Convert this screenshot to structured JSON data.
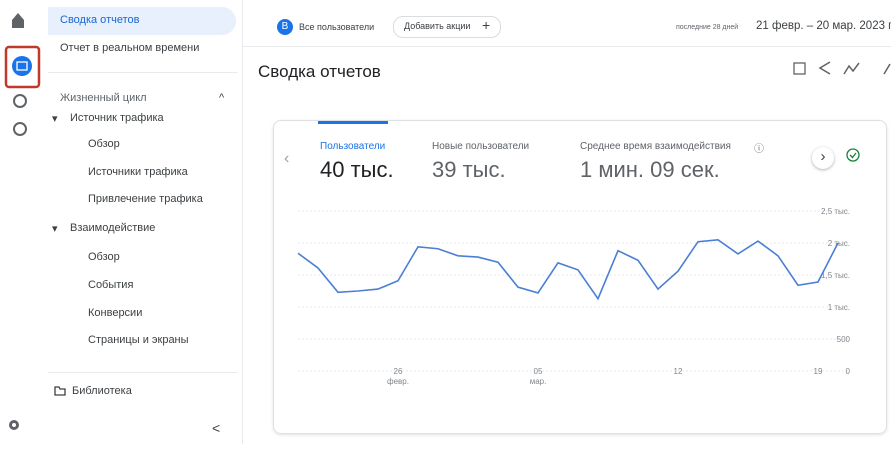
{
  "sidebar": {
    "items": [
      "Сводка отчетов",
      "Отчет в реальном времени"
    ],
    "section": "Жизненный цикл",
    "groups": [
      {
        "title": "Источник трафика",
        "items": [
          "Обзор",
          "Источники трафика",
          "Привлечение трафика"
        ]
      },
      {
        "title": "Взаимодействие",
        "items": [
          "Обзор",
          "События",
          "Конверсии",
          "Страницы и экраны"
        ]
      }
    ],
    "library": "Библиотека"
  },
  "topbar": {
    "segment_badge": "B",
    "segment": "Все пользователи",
    "add_button": "Добавить акции",
    "date_prefix": "последние 28 дней",
    "date_range": "21 февр. – 20 мар. 2023 г."
  },
  "page_title": "Сводка отчетов",
  "metrics": [
    {
      "name": "Пользователи",
      "value": "40 тыс."
    },
    {
      "name": "Новые пользователи",
      "value": "39 тыс."
    },
    {
      "name": "Среднее время взаимодействия",
      "value": "1 мин. 09 сек."
    }
  ],
  "chart_data": {
    "type": "line",
    "categories": [
      null,
      null,
      null,
      null,
      null,
      {
        "day": "26",
        "month": "февр."
      },
      null,
      null,
      null,
      null,
      null,
      null,
      {
        "day": "05",
        "month": "мар."
      },
      null,
      null,
      null,
      null,
      null,
      null,
      {
        "day": "12"
      },
      null,
      null,
      null,
      null,
      null,
      null,
      {
        "day": "19"
      },
      null
    ],
    "series": [
      {
        "name": "Пользователи",
        "color": "#4a7fd4",
        "values": [
          1840,
          1610,
          1230,
          1250,
          1280,
          1410,
          1940,
          1910,
          1800,
          1780,
          1700,
          1310,
          1220,
          1690,
          1580,
          1130,
          1880,
          1730,
          1280,
          1560,
          2020,
          2050,
          1830,
          2030,
          1800,
          1340,
          1390,
          2000
        ]
      }
    ],
    "ylim": [
      0,
      2500
    ],
    "yticks": [
      {
        "value": 2500,
        "label": "2,5 тыс."
      },
      {
        "value": 2000,
        "label": "2 тыс."
      },
      {
        "value": 1500,
        "label": "1,5 тыс."
      },
      {
        "value": 1000,
        "label": "1 тыс."
      },
      500,
      0
    ],
    "grid": true
  }
}
